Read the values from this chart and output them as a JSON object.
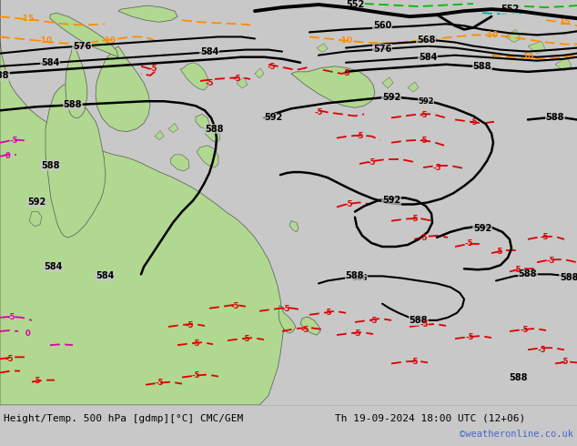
{
  "title_left": "Height/Temp. 500 hPa [gdmp][°C] CMC/GEM",
  "title_right": "Th 19-09-2024 18:00 UTC (12+06)",
  "watermark": "©weatheronline.co.uk",
  "bg_map_color": "#c8c8c8",
  "land_green": "#b0d890",
  "land_gray": "#a8a8a8",
  "fig_width": 6.34,
  "fig_height": 4.9,
  "dpi": 100,
  "bottom_bg": "#ffffff",
  "watermark_color": "#4466cc",
  "text_color": "#000000"
}
